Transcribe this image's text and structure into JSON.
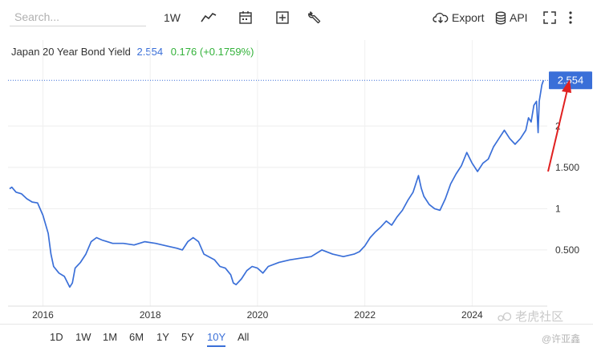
{
  "toolbar": {
    "search_placeholder": "Search...",
    "interval_label": "1W",
    "export_label": "Export",
    "api_label": "API"
  },
  "legend": {
    "name": "Japan 20 Year Bond Yield",
    "value": "2.554",
    "change": "0.176 (+0.1759%)"
  },
  "price_tag": "2.554",
  "periods": [
    "1D",
    "1W",
    "1M",
    "6M",
    "1Y",
    "5Y",
    "10Y",
    "All"
  ],
  "active_period": "10Y",
  "watermark": {
    "brand": "老虎社区",
    "author": "@许亚鑫"
  },
  "colors": {
    "line": "#3a6fd8",
    "up": "#33b23a",
    "annotation": "#e02020"
  },
  "chart_data": {
    "type": "line",
    "title": "Japan 20 Year Bond Yield",
    "x_ticks": [
      "2016",
      "2018",
      "2020",
      "2022",
      "2024"
    ],
    "y_ticks": [
      "0.500",
      "1",
      "1.500",
      "2"
    ],
    "xlim": [
      2015.35,
      2025.37
    ],
    "ylim": [
      -0.18,
      2.75
    ],
    "last_value": 2.554,
    "series": [
      {
        "values": [
          [
            2015.38,
            1.24
          ],
          [
            2015.42,
            1.26
          ],
          [
            2015.5,
            1.2
          ],
          [
            2015.6,
            1.18
          ],
          [
            2015.7,
            1.12
          ],
          [
            2015.8,
            1.08
          ],
          [
            2015.9,
            1.07
          ],
          [
            2016.0,
            0.92
          ],
          [
            2016.1,
            0.7
          ],
          [
            2016.15,
            0.45
          ],
          [
            2016.2,
            0.3
          ],
          [
            2016.3,
            0.22
          ],
          [
            2016.4,
            0.18
          ],
          [
            2016.5,
            0.05
          ],
          [
            2016.55,
            0.1
          ],
          [
            2016.6,
            0.28
          ],
          [
            2016.7,
            0.35
          ],
          [
            2016.8,
            0.45
          ],
          [
            2016.9,
            0.6
          ],
          [
            2017.0,
            0.65
          ],
          [
            2017.1,
            0.62
          ],
          [
            2017.2,
            0.6
          ],
          [
            2017.3,
            0.58
          ],
          [
            2017.5,
            0.58
          ],
          [
            2017.7,
            0.56
          ],
          [
            2017.9,
            0.6
          ],
          [
            2018.1,
            0.58
          ],
          [
            2018.3,
            0.55
          ],
          [
            2018.5,
            0.52
          ],
          [
            2018.6,
            0.5
          ],
          [
            2018.7,
            0.6
          ],
          [
            2018.8,
            0.65
          ],
          [
            2018.9,
            0.6
          ],
          [
            2019.0,
            0.45
          ],
          [
            2019.2,
            0.38
          ],
          [
            2019.3,
            0.3
          ],
          [
            2019.4,
            0.28
          ],
          [
            2019.5,
            0.2
          ],
          [
            2019.55,
            0.1
          ],
          [
            2019.6,
            0.08
          ],
          [
            2019.7,
            0.15
          ],
          [
            2019.8,
            0.25
          ],
          [
            2019.9,
            0.3
          ],
          [
            2020.0,
            0.28
          ],
          [
            2020.1,
            0.22
          ],
          [
            2020.2,
            0.3
          ],
          [
            2020.4,
            0.35
          ],
          [
            2020.6,
            0.38
          ],
          [
            2020.8,
            0.4
          ],
          [
            2021.0,
            0.42
          ],
          [
            2021.2,
            0.5
          ],
          [
            2021.4,
            0.45
          ],
          [
            2021.6,
            0.42
          ],
          [
            2021.8,
            0.45
          ],
          [
            2021.9,
            0.48
          ],
          [
            2022.0,
            0.55
          ],
          [
            2022.1,
            0.65
          ],
          [
            2022.2,
            0.72
          ],
          [
            2022.3,
            0.78
          ],
          [
            2022.4,
            0.85
          ],
          [
            2022.5,
            0.8
          ],
          [
            2022.6,
            0.9
          ],
          [
            2022.7,
            0.98
          ],
          [
            2022.8,
            1.1
          ],
          [
            2022.9,
            1.2
          ],
          [
            2023.0,
            1.4
          ],
          [
            2023.05,
            1.25
          ],
          [
            2023.1,
            1.15
          ],
          [
            2023.2,
            1.05
          ],
          [
            2023.3,
            1.0
          ],
          [
            2023.4,
            0.98
          ],
          [
            2023.5,
            1.12
          ],
          [
            2023.6,
            1.3
          ],
          [
            2023.7,
            1.42
          ],
          [
            2023.8,
            1.52
          ],
          [
            2023.9,
            1.68
          ],
          [
            2024.0,
            1.55
          ],
          [
            2024.1,
            1.45
          ],
          [
            2024.2,
            1.55
          ],
          [
            2024.3,
            1.6
          ],
          [
            2024.4,
            1.75
          ],
          [
            2024.5,
            1.85
          ],
          [
            2024.6,
            1.95
          ],
          [
            2024.7,
            1.85
          ],
          [
            2024.8,
            1.78
          ],
          [
            2024.9,
            1.85
          ],
          [
            2025.0,
            1.95
          ],
          [
            2025.05,
            2.1
          ],
          [
            2025.1,
            2.05
          ],
          [
            2025.15,
            2.25
          ],
          [
            2025.2,
            2.3
          ],
          [
            2025.23,
            1.92
          ],
          [
            2025.25,
            2.3
          ],
          [
            2025.3,
            2.5
          ],
          [
            2025.33,
            2.554
          ]
        ]
      }
    ]
  }
}
